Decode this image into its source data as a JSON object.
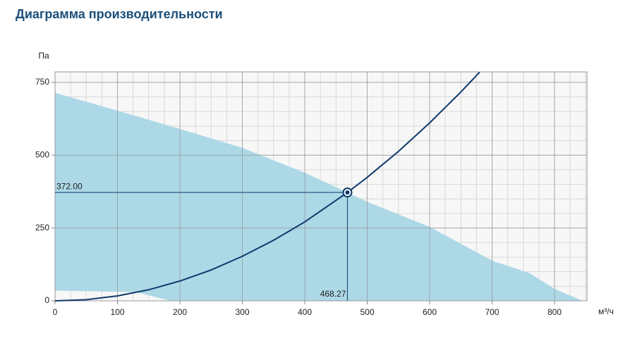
{
  "chart_data": {
    "type": "line",
    "title": "Диаграмма производительности",
    "ylabel": "Па",
    "xlabel": "м³/ч",
    "xlim": [
      0,
      852
    ],
    "ylim": [
      0,
      786
    ],
    "xticks": [
      0,
      100,
      200,
      300,
      400,
      500,
      600,
      700,
      800
    ],
    "yticks": [
      0,
      250,
      500,
      750
    ],
    "grid": true,
    "minor_grid": {
      "x": 25,
      "y": 50
    },
    "area": {
      "color": "#add8e6",
      "x": [
        0,
        100,
        200,
        300,
        400,
        468.27,
        500,
        600,
        700,
        760,
        800,
        845
      ],
      "upper": [
        714,
        653,
        590,
        525,
        440,
        372,
        340,
        254,
        138,
        95,
        41,
        0
      ],
      "x_lower": [
        845,
        185,
        130,
        0
      ],
      "lower": [
        0,
        0,
        30,
        35
      ]
    },
    "series": [
      {
        "color": "#0d3a6b",
        "x": [
          0,
          50,
          100,
          150,
          200,
          250,
          300,
          350,
          400,
          468.27,
          500,
          550,
          600,
          650,
          680
        ],
        "values": [
          0,
          4,
          17,
          38,
          68,
          106,
          153,
          208,
          271,
          372,
          424,
          513,
          611,
          717,
          785
        ]
      }
    ],
    "point": {
      "x": 468.27,
      "y": 372,
      "x_label": "468.27",
      "y_label": "372.00",
      "color": "#0d3a6b"
    }
  }
}
